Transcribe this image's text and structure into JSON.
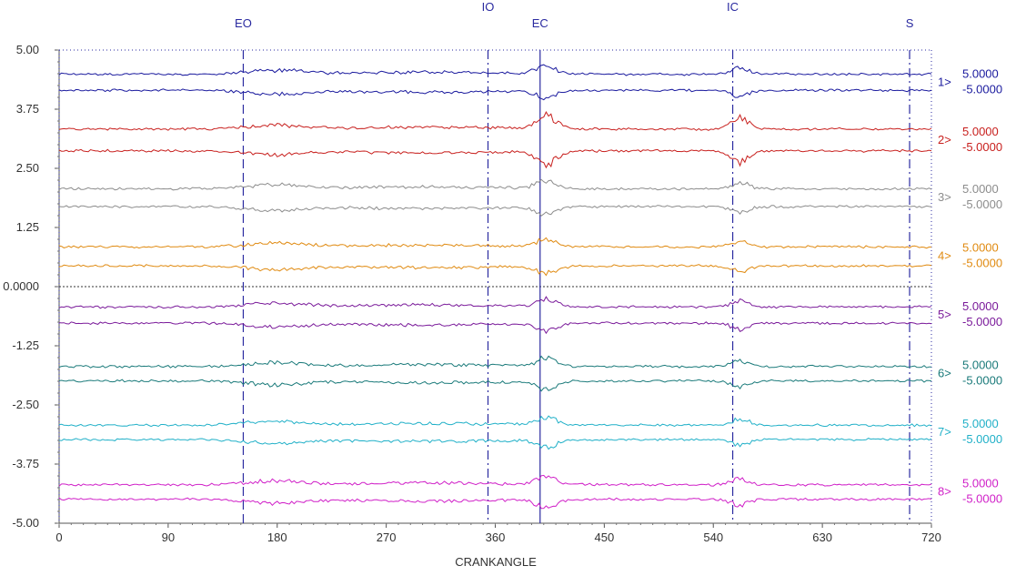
{
  "chart_data": {
    "type": "line",
    "xlabel": "CRANKANGLE",
    "xlim": [
      0,
      720
    ],
    "ylim": [
      -5,
      5
    ],
    "x_ticks": [
      0,
      90,
      180,
      270,
      360,
      450,
      540,
      630,
      720
    ],
    "x_tick_labels": [
      "0",
      "90",
      "180",
      "270",
      "360",
      "450",
      "540",
      "630",
      "720"
    ],
    "y_ticks": [
      5,
      3.75,
      2.5,
      1.25,
      0,
      -1.25,
      -2.5,
      -3.75,
      -5
    ],
    "y_tick_labels": [
      "5.00",
      "3.75",
      "2.50",
      "1.25",
      "0.0000",
      "-1.25",
      "-2.50",
      "-3.75",
      "-5.00"
    ],
    "grid": false,
    "events": [
      {
        "label": "EO",
        "x": 152,
        "style": "dashed"
      },
      {
        "label": "IO",
        "x": 354,
        "style": "dashdot"
      },
      {
        "label": "EC",
        "x": 397,
        "style": "solid"
      },
      {
        "label": "IC",
        "x": 556,
        "style": "dashdot"
      },
      {
        "label": "S",
        "x": 702,
        "style": "dashdot"
      }
    ],
    "series": [
      {
        "name": "1>",
        "center": 4.32,
        "range_max": "5.0000",
        "range_min": "-5.0000",
        "color": "#1a1a9e"
      },
      {
        "name": "2>",
        "center": 3.1,
        "range_max": "5.0000",
        "range_min": "-5.0000",
        "color": "#c8201e"
      },
      {
        "name": "3>",
        "center": 1.88,
        "range_max": "5.0000",
        "range_min": "-5.0000",
        "color": "#8c8c8c"
      },
      {
        "name": "4>",
        "center": 0.64,
        "range_max": "5.0000",
        "range_min": "-5.0000",
        "color": "#e08a10"
      },
      {
        "name": "5>",
        "center": -0.6,
        "range_max": "5.0000",
        "range_min": "-5.0000",
        "color": "#7a1a9a"
      },
      {
        "name": "6>",
        "center": -1.84,
        "range_max": "5.0000",
        "range_min": "-5.0000",
        "color": "#1a7a7a"
      },
      {
        "name": "7>",
        "center": -3.08,
        "range_max": "5.0000",
        "range_min": "-5.0000",
        "color": "#20b0c8"
      },
      {
        "name": "8>",
        "center": -4.34,
        "range_max": "5.0000",
        "range_min": "-5.0000",
        "color": "#d020c8"
      }
    ]
  }
}
